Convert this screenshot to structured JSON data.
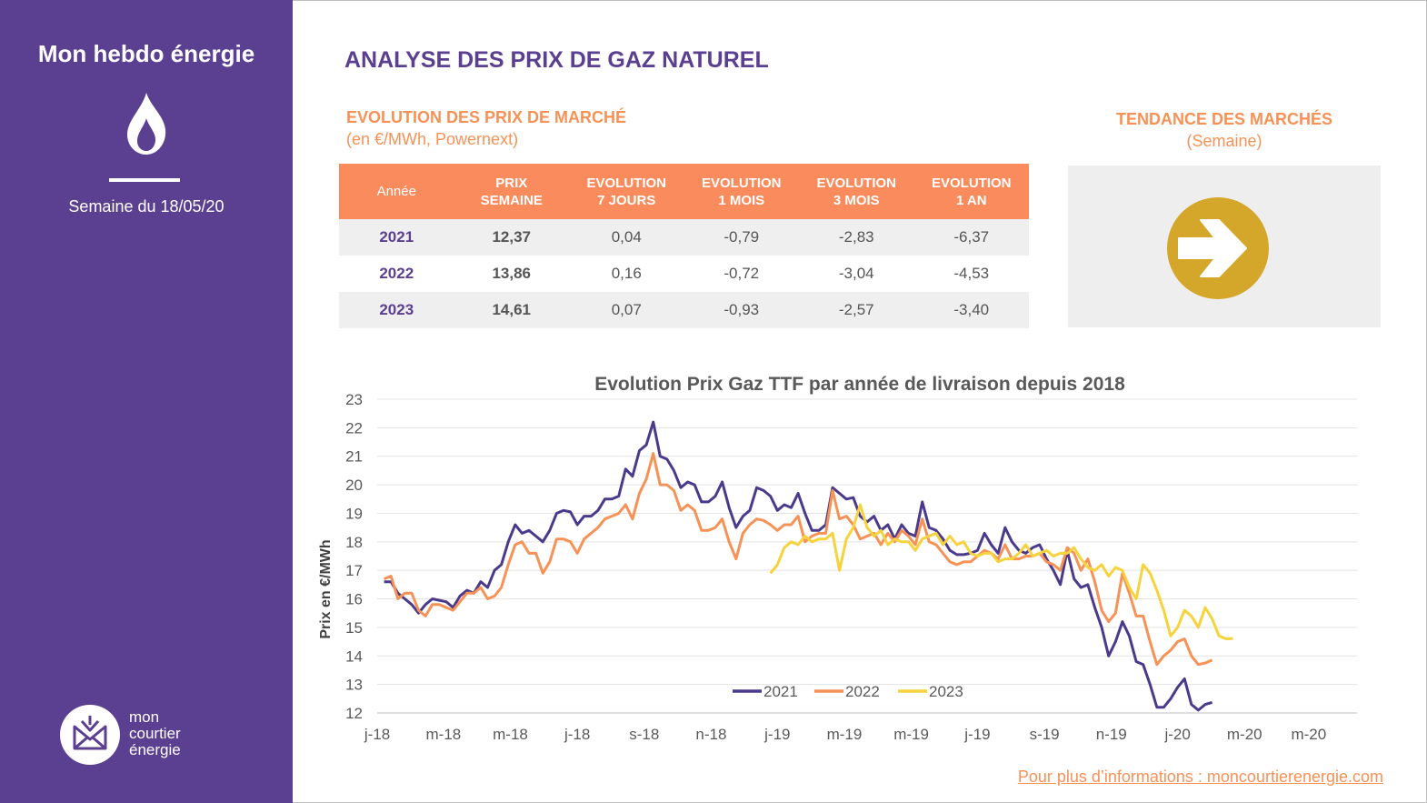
{
  "sidebar": {
    "title": "Mon hebdo énergie",
    "icon": "flame-icon",
    "week_label": "Semaine du 18/05/20",
    "logo": {
      "icon": "envelope-logo-icon",
      "line1": "mon",
      "line2": "courtier",
      "line3": "énergie"
    }
  },
  "header": {
    "title": "ANALYSE DES PRIX DE GAZ NATUREL"
  },
  "prices_section": {
    "title": "EVOLUTION DES PRIX DE MARCHÉ",
    "subtitle": "(en €/MWh, Powernext)",
    "columns": [
      {
        "l1": "Année",
        "l2": ""
      },
      {
        "l1": "PRIX",
        "l2": "SEMAINE"
      },
      {
        "l1": "EVOLUTION",
        "l2": "7 JOURS"
      },
      {
        "l1": "EVOLUTION",
        "l2": "1 MOIS"
      },
      {
        "l1": "EVOLUTION",
        "l2": "3 MOIS"
      },
      {
        "l1": "EVOLUTION",
        "l2": "1 AN"
      }
    ],
    "rows": [
      {
        "year": "2021",
        "price": "12,37",
        "d7": "0,04",
        "m1": "-0,79",
        "m3": "-2,83",
        "y1": "-6,37"
      },
      {
        "year": "2022",
        "price": "13,86",
        "d7": "0,16",
        "m1": "-0,72",
        "m3": "-3,04",
        "y1": "-4,53"
      },
      {
        "year": "2023",
        "price": "14,61",
        "d7": "0,07",
        "m1": "-0,93",
        "m3": "-2,57",
        "y1": "-3,40"
      }
    ]
  },
  "trend": {
    "title": "TENDANCE DES MARCHÉS",
    "subtitle": "(Semaine)",
    "icon": "right-arrow-circle-icon",
    "color": "#d4a62a"
  },
  "chart_data": {
    "type": "line",
    "title": "Evolution Prix Gaz TTF par année de livraison depuis 2018",
    "ylabel": "Prix en €/MWh",
    "xlabel": "",
    "ylim": [
      12,
      23
    ],
    "yticks": [
      12,
      13,
      14,
      15,
      16,
      17,
      18,
      19,
      20,
      21,
      22,
      23
    ],
    "xrange": [
      0,
      142
    ],
    "xticks": [
      {
        "pos": 0,
        "label": "j-18"
      },
      {
        "pos": 9.6,
        "label": "m-18"
      },
      {
        "pos": 19.3,
        "label": "m-18"
      },
      {
        "pos": 29,
        "label": "j-18"
      },
      {
        "pos": 38.7,
        "label": "s-18"
      },
      {
        "pos": 48.4,
        "label": "n-18"
      },
      {
        "pos": 58,
        "label": "j-19"
      },
      {
        "pos": 67.7,
        "label": "m-19"
      },
      {
        "pos": 77.4,
        "label": "m-19"
      },
      {
        "pos": 87,
        "label": "j-19"
      },
      {
        "pos": 96.7,
        "label": "s-19"
      },
      {
        "pos": 106.4,
        "label": "n-19"
      },
      {
        "pos": 116,
        "label": "j-20"
      },
      {
        "pos": 125.7,
        "label": "m-20"
      },
      {
        "pos": 135,
        "label": "m-20"
      }
    ],
    "grid": true,
    "legend": "bottom-center",
    "series": [
      {
        "name": "2021",
        "color": "#4b3a8c",
        "x_start": 1,
        "values": [
          16.6,
          16.6,
          16.2,
          16.0,
          15.8,
          15.5,
          15.8,
          16.0,
          15.95,
          15.9,
          15.7,
          16.1,
          16.3,
          16.2,
          16.6,
          16.4,
          17.0,
          17.2,
          18.0,
          18.6,
          18.3,
          18.4,
          18.2,
          18.0,
          18.4,
          19.0,
          19.1,
          19.05,
          18.6,
          18.9,
          18.9,
          19.1,
          19.5,
          19.5,
          19.6,
          20.55,
          20.3,
          21.2,
          21.4,
          22.2,
          21.0,
          20.9,
          20.5,
          19.9,
          20.1,
          20.0,
          19.4,
          19.4,
          19.6,
          20.1,
          19.2,
          18.5,
          18.9,
          19.1,
          19.9,
          19.8,
          19.6,
          19.1,
          19.3,
          19.2,
          19.7,
          19.0,
          18.4,
          18.4,
          18.6,
          19.9,
          19.7,
          19.5,
          19.55,
          18.9,
          18.7,
          18.9,
          18.4,
          18.6,
          18.1,
          18.6,
          18.3,
          18.2,
          19.4,
          18.5,
          18.4,
          18.1,
          17.7,
          17.55,
          17.55,
          17.6,
          17.7,
          18.3,
          17.9,
          17.6,
          18.5,
          18.0,
          17.7,
          17.6,
          17.8,
          17.9,
          17.4,
          17.0,
          16.5,
          17.7,
          16.7,
          16.4,
          16.5,
          15.7,
          15.0,
          14.0,
          14.5,
          15.2,
          14.7,
          13.8,
          13.7,
          13.0,
          12.2,
          12.2,
          12.5,
          12.9,
          13.2,
          12.3,
          12.1,
          12.3,
          12.37
        ]
      },
      {
        "name": "2022",
        "color": "#f79257",
        "x_start": 1,
        "values": [
          16.7,
          16.8,
          16.0,
          16.2,
          16.2,
          15.6,
          15.4,
          15.8,
          15.8,
          15.7,
          15.6,
          15.9,
          16.2,
          16.2,
          16.4,
          16.0,
          16.1,
          16.4,
          17.2,
          17.9,
          18.0,
          17.6,
          17.6,
          16.9,
          17.3,
          18.1,
          18.1,
          18.0,
          17.6,
          18.1,
          18.3,
          18.5,
          18.8,
          18.9,
          19.0,
          19.3,
          18.8,
          19.7,
          20.2,
          21.1,
          20.0,
          20.0,
          19.8,
          19.1,
          19.3,
          19.1,
          18.4,
          18.4,
          18.5,
          18.8,
          18.0,
          17.4,
          18.3,
          18.6,
          18.8,
          18.75,
          18.6,
          18.4,
          18.6,
          18.6,
          18.9,
          18.0,
          18.2,
          18.3,
          18.3,
          19.8,
          18.8,
          18.9,
          18.6,
          18.1,
          18.2,
          18.3,
          17.9,
          18.3,
          18.0,
          18.4,
          18.2,
          17.9,
          18.8,
          18.0,
          17.9,
          17.6,
          17.3,
          17.2,
          17.3,
          17.3,
          17.5,
          17.7,
          17.6,
          17.4,
          17.9,
          17.4,
          17.4,
          17.5,
          17.5,
          17.6,
          17.3,
          17.2,
          17.0,
          17.8,
          17.6,
          17.0,
          17.4,
          16.6,
          15.6,
          15.2,
          15.5,
          16.9,
          16.2,
          15.4,
          15.4,
          14.5,
          13.7,
          14.0,
          14.2,
          14.5,
          14.6,
          14.0,
          13.7,
          13.75,
          13.86
        ]
      },
      {
        "name": "2023",
        "color": "#f6d33c",
        "x_start": 57,
        "values": [
          16.9,
          17.2,
          17.8,
          18.0,
          17.9,
          18.2,
          18.0,
          18.1,
          18.1,
          18.3,
          17.0,
          18.1,
          18.5,
          19.3,
          18.5,
          18.2,
          18.4,
          17.9,
          18.1,
          18.0,
          18.0,
          17.7,
          18.1,
          18.2,
          18.3,
          17.9,
          18.2,
          17.9,
          18.0,
          17.6,
          17.5,
          17.6,
          17.6,
          17.3,
          17.4,
          17.4,
          17.6,
          17.9,
          17.5,
          17.6,
          17.7,
          17.5,
          17.6,
          17.6,
          17.8,
          17.4,
          17.1,
          17.0,
          17.2,
          16.8,
          17.1,
          17.0,
          16.4,
          16.0,
          17.2,
          16.9,
          16.3,
          15.6,
          14.7,
          15.0,
          15.6,
          15.4,
          15.0,
          15.7,
          15.3,
          14.7,
          14.6,
          14.61
        ]
      }
    ]
  },
  "footer": {
    "link_text": "Pour plus d’informations : moncourtierenergie.com"
  }
}
